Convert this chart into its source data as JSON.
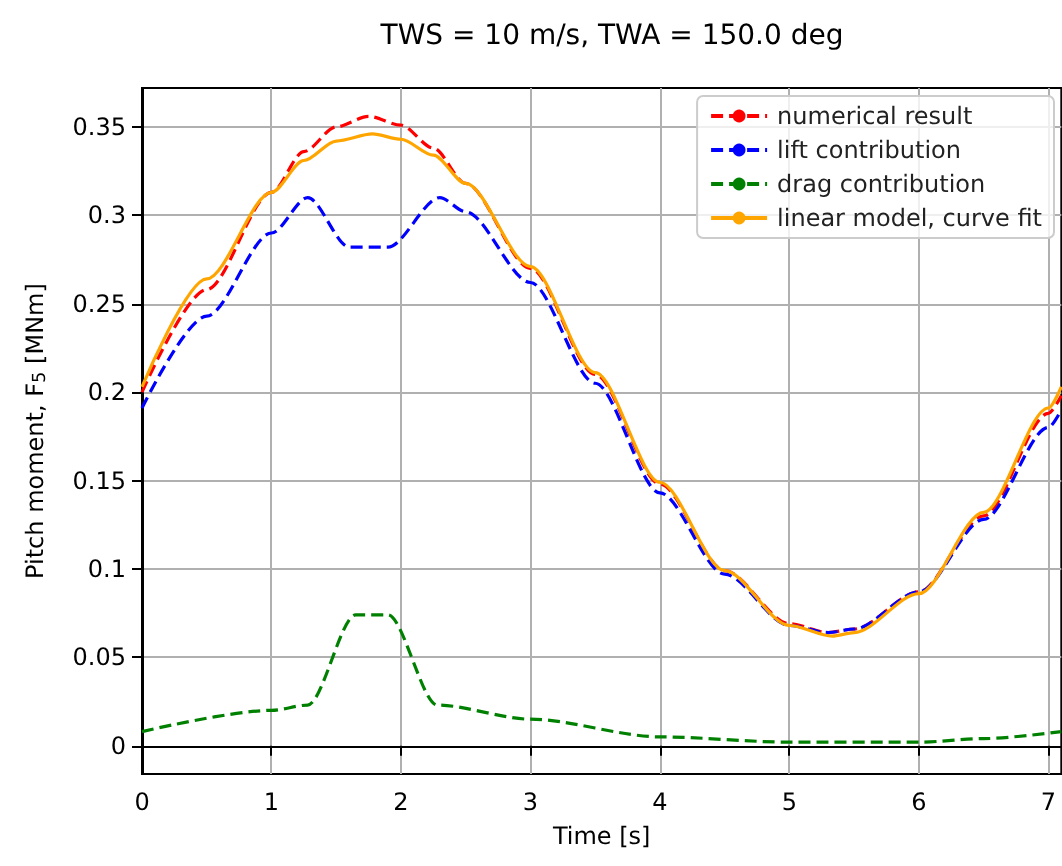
{
  "chart_data": {
    "type": "line",
    "title": "TWS = 10 m/s, TWA = 150.0 deg",
    "xlabel": "Time [s]",
    "ylabel": "Pitch moment, F$_{5}$ [MNm]",
    "xlim": [
      0,
      7.1
    ],
    "xticks": [
      0,
      1,
      2,
      3,
      4,
      5,
      6,
      7
    ],
    "ylim": [
      -0.016,
      0.372
    ],
    "yticks": [
      0,
      0.05,
      0.1,
      0.15,
      0.2,
      0.25,
      0.3,
      0.35
    ],
    "grid": true,
    "legend": "top right",
    "marker": "none",
    "series": [
      {
        "name": "numerical result",
        "color": "#ff0000",
        "line_style": "dashed",
        "x": [
          0,
          0.5,
          1.0,
          1.25,
          1.5,
          1.75,
          2.0,
          2.25,
          2.5,
          3.0,
          3.5,
          4.0,
          4.5,
          5.0,
          5.3,
          5.5,
          6.0,
          6.5,
          7.0,
          7.1
        ],
        "values": [
          0.2,
          0.258,
          0.313,
          0.336,
          0.35,
          0.356,
          0.351,
          0.338,
          0.318,
          0.27,
          0.21,
          0.148,
          0.099,
          0.069,
          0.064,
          0.066,
          0.087,
          0.13,
          0.188,
          0.198
        ]
      },
      {
        "name": "lift contribution",
        "color": "#0000ff",
        "line_style": "dashed",
        "x": [
          0,
          0.5,
          1.0,
          1.28,
          1.6,
          1.9,
          2.3,
          2.5,
          3.0,
          3.5,
          4.0,
          4.5,
          5.0,
          5.3,
          5.5,
          6.0,
          6.5,
          7.0,
          7.1
        ],
        "values": [
          0.191,
          0.243,
          0.29,
          0.31,
          0.282,
          0.282,
          0.31,
          0.302,
          0.262,
          0.205,
          0.143,
          0.097,
          0.068,
          0.064,
          0.066,
          0.087,
          0.128,
          0.18,
          0.19
        ]
      },
      {
        "name": "drag contribution",
        "color": "#008000",
        "line_style": "dashed",
        "x": [
          0,
          1.0,
          1.28,
          1.65,
          1.9,
          2.28,
          3.0,
          4.0,
          5.0,
          6.0,
          6.5,
          7.1
        ],
        "values": [
          0.008,
          0.02,
          0.023,
          0.074,
          0.074,
          0.023,
          0.015,
          0.005,
          0.002,
          0.002,
          0.004,
          0.008
        ]
      },
      {
        "name": "linear model, curve fit",
        "color": "#ffa500",
        "line_style": "solid",
        "x": [
          0,
          0.5,
          1.0,
          1.25,
          1.5,
          1.78,
          2.0,
          2.25,
          2.5,
          3.0,
          3.5,
          4.0,
          4.5,
          5.0,
          5.33,
          5.5,
          6.0,
          6.5,
          7.0,
          7.1
        ],
        "values": [
          0.203,
          0.264,
          0.313,
          0.331,
          0.342,
          0.346,
          0.343,
          0.334,
          0.318,
          0.271,
          0.211,
          0.149,
          0.099,
          0.068,
          0.062,
          0.064,
          0.086,
          0.132,
          0.191,
          0.203
        ]
      }
    ]
  }
}
